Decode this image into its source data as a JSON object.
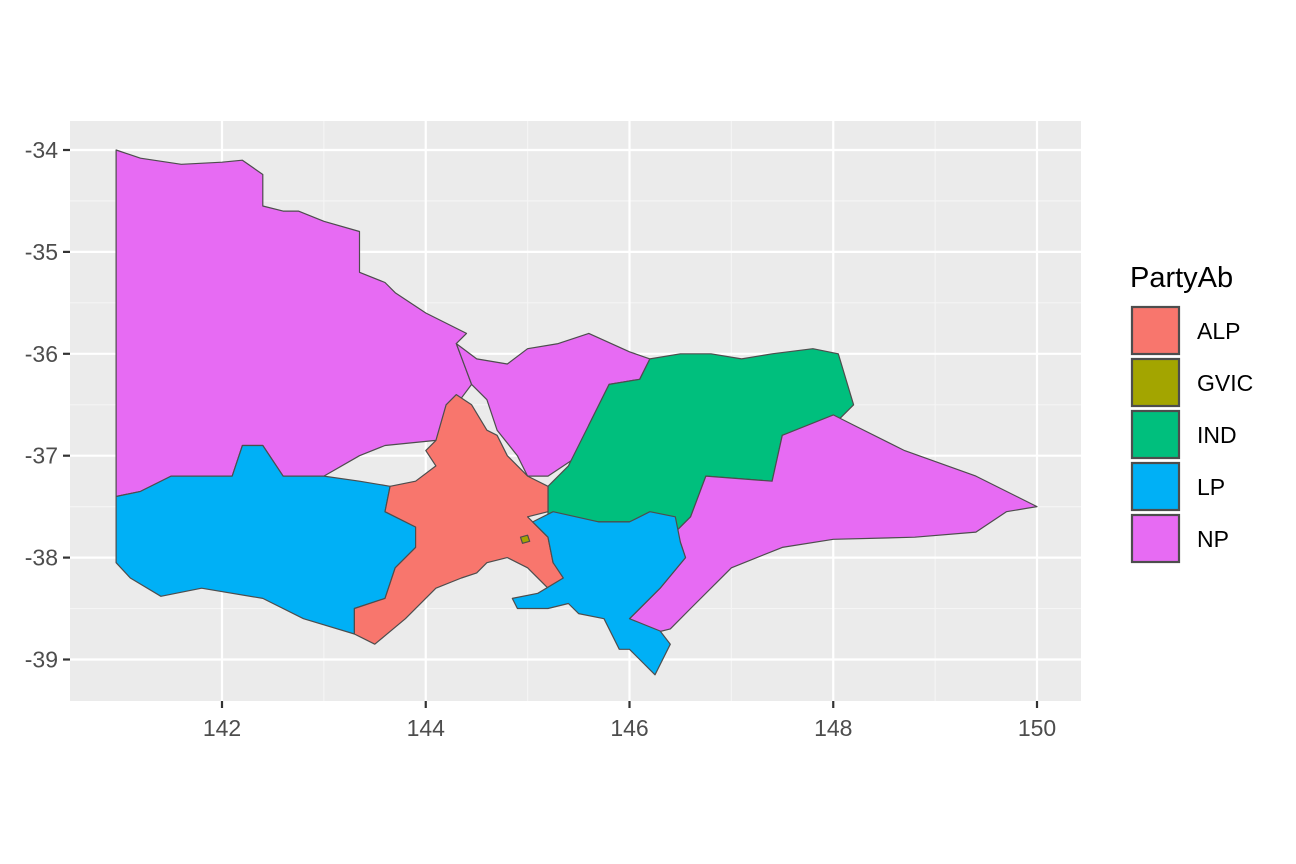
{
  "chart_data": {
    "type": "map",
    "title": "",
    "xlabel": "",
    "ylabel": "",
    "xlim": [
      140.7,
      150.3
    ],
    "ylim": [
      -39.4,
      -33.7
    ],
    "x_ticks": [
      142,
      144,
      146,
      148,
      150
    ],
    "y_ticks": [
      -34,
      -35,
      -36,
      -37,
      -38,
      -39
    ],
    "x_tick_labels": [
      "142",
      "144",
      "146",
      "148",
      "150"
    ],
    "y_tick_labels": [
      "-34",
      "-35",
      "-36",
      "-37",
      "-38",
      "-39"
    ],
    "grid": true,
    "legend": {
      "title": "PartyAb",
      "placement": "right",
      "entries": [
        {
          "label": "ALP",
          "color": "#F8766D"
        },
        {
          "label": "GVIC",
          "color": "#A3A500"
        },
        {
          "label": "IND",
          "color": "#00BF7D"
        },
        {
          "label": "LP",
          "color": "#00B0F6"
        },
        {
          "label": "NP",
          "color": "#E76BF3"
        }
      ]
    },
    "regions": [
      {
        "party": "NP",
        "points": [
          [
            140.96,
            -34.0
          ],
          [
            141.2,
            -34.08
          ],
          [
            141.6,
            -34.14
          ],
          [
            142.0,
            -34.12
          ],
          [
            142.2,
            -34.1
          ],
          [
            142.4,
            -34.24
          ],
          [
            142.4,
            -34.55
          ],
          [
            142.6,
            -34.6
          ],
          [
            142.75,
            -34.6
          ],
          [
            143.0,
            -34.7
          ],
          [
            143.35,
            -34.8
          ],
          [
            143.35,
            -35.2
          ],
          [
            143.6,
            -35.3
          ],
          [
            143.7,
            -35.4
          ],
          [
            144.0,
            -35.6
          ],
          [
            144.4,
            -35.8
          ],
          [
            144.3,
            -35.9
          ],
          [
            144.45,
            -36.3
          ],
          [
            144.3,
            -36.5
          ],
          [
            144.1,
            -36.85
          ],
          [
            143.6,
            -36.9
          ],
          [
            143.35,
            -37.0
          ],
          [
            143.0,
            -37.2
          ],
          [
            142.6,
            -37.2
          ],
          [
            142.4,
            -36.9
          ],
          [
            142.2,
            -36.9
          ],
          [
            142.1,
            -37.2
          ],
          [
            141.5,
            -37.2
          ],
          [
            141.2,
            -37.35
          ],
          [
            140.96,
            -37.4
          ]
        ]
      },
      {
        "party": "NP",
        "points": [
          [
            144.3,
            -35.9
          ],
          [
            144.5,
            -36.05
          ],
          [
            144.8,
            -36.1
          ],
          [
            145.0,
            -35.95
          ],
          [
            145.3,
            -35.9
          ],
          [
            145.6,
            -35.8
          ],
          [
            146.0,
            -35.98
          ],
          [
            146.2,
            -36.05
          ],
          [
            146.1,
            -36.25
          ],
          [
            145.8,
            -36.3
          ],
          [
            145.6,
            -36.7
          ],
          [
            145.5,
            -37.0
          ],
          [
            145.2,
            -37.2
          ],
          [
            145.0,
            -37.2
          ],
          [
            144.9,
            -37.0
          ],
          [
            144.7,
            -36.75
          ],
          [
            144.6,
            -36.45
          ],
          [
            144.45,
            -36.3
          ]
        ]
      },
      {
        "party": "IND",
        "points": [
          [
            146.2,
            -36.05
          ],
          [
            146.5,
            -36.0
          ],
          [
            146.8,
            -36.0
          ],
          [
            147.1,
            -36.05
          ],
          [
            147.4,
            -36.0
          ],
          [
            147.8,
            -35.95
          ],
          [
            148.05,
            -36.0
          ],
          [
            148.2,
            -36.5
          ],
          [
            148.0,
            -36.7
          ],
          [
            147.5,
            -36.8
          ],
          [
            147.4,
            -37.25
          ],
          [
            146.75,
            -37.2
          ],
          [
            146.6,
            -37.6
          ],
          [
            146.45,
            -37.75
          ],
          [
            146.0,
            -37.65
          ],
          [
            145.7,
            -37.65
          ],
          [
            145.2,
            -37.6
          ],
          [
            145.2,
            -37.3
          ],
          [
            145.4,
            -37.1
          ],
          [
            145.6,
            -36.7
          ],
          [
            145.8,
            -36.3
          ],
          [
            146.1,
            -36.25
          ]
        ]
      },
      {
        "party": "NP",
        "points": [
          [
            147.4,
            -37.25
          ],
          [
            147.5,
            -36.8
          ],
          [
            148.0,
            -36.6
          ],
          [
            148.2,
            -36.7
          ],
          [
            148.7,
            -36.95
          ],
          [
            149.4,
            -37.2
          ],
          [
            150.0,
            -37.5
          ],
          [
            149.7,
            -37.55
          ],
          [
            149.4,
            -37.75
          ],
          [
            148.8,
            -37.8
          ],
          [
            148.0,
            -37.82
          ],
          [
            147.5,
            -37.9
          ],
          [
            147.0,
            -38.1
          ],
          [
            146.6,
            -38.5
          ],
          [
            146.4,
            -38.7
          ],
          [
            146.2,
            -38.75
          ],
          [
            146.0,
            -38.6
          ],
          [
            146.3,
            -38.3
          ],
          [
            146.55,
            -38.0
          ],
          [
            146.5,
            -37.85
          ],
          [
            146.45,
            -37.75
          ],
          [
            146.6,
            -37.6
          ],
          [
            146.75,
            -37.2
          ]
        ]
      },
      {
        "party": "LP",
        "points": [
          [
            140.96,
            -37.4
          ],
          [
            141.2,
            -37.35
          ],
          [
            141.5,
            -37.2
          ],
          [
            142.1,
            -37.2
          ],
          [
            142.2,
            -36.9
          ],
          [
            142.4,
            -36.9
          ],
          [
            142.6,
            -37.2
          ],
          [
            143.0,
            -37.2
          ],
          [
            143.35,
            -37.25
          ],
          [
            143.65,
            -37.3
          ],
          [
            143.6,
            -37.55
          ],
          [
            143.9,
            -37.7
          ],
          [
            143.9,
            -37.9
          ],
          [
            143.7,
            -38.1
          ],
          [
            143.6,
            -38.4
          ],
          [
            143.3,
            -38.5
          ],
          [
            143.3,
            -38.75
          ],
          [
            142.8,
            -38.6
          ],
          [
            142.4,
            -38.4
          ],
          [
            141.8,
            -38.3
          ],
          [
            141.4,
            -38.38
          ],
          [
            141.1,
            -38.2
          ],
          [
            140.96,
            -38.05
          ]
        ]
      },
      {
        "party": "ALP",
        "points": [
          [
            143.65,
            -37.3
          ],
          [
            143.9,
            -37.25
          ],
          [
            144.1,
            -37.1
          ],
          [
            144.0,
            -36.95
          ],
          [
            144.1,
            -36.85
          ],
          [
            144.2,
            -36.5
          ],
          [
            144.3,
            -36.4
          ],
          [
            144.45,
            -36.5
          ],
          [
            144.6,
            -36.75
          ],
          [
            144.7,
            -36.8
          ],
          [
            144.8,
            -37.0
          ],
          [
            145.0,
            -37.2
          ],
          [
            145.2,
            -37.3
          ],
          [
            145.2,
            -37.55
          ],
          [
            145.0,
            -37.6
          ],
          [
            145.2,
            -37.8
          ],
          [
            145.25,
            -38.05
          ],
          [
            145.4,
            -38.2
          ],
          [
            145.2,
            -38.3
          ],
          [
            145.0,
            -38.1
          ],
          [
            144.8,
            -38.0
          ],
          [
            144.6,
            -38.05
          ],
          [
            144.5,
            -38.15
          ],
          [
            144.35,
            -38.2
          ],
          [
            144.1,
            -38.3
          ],
          [
            143.8,
            -38.6
          ],
          [
            143.5,
            -38.85
          ],
          [
            143.3,
            -38.75
          ],
          [
            143.3,
            -38.5
          ],
          [
            143.6,
            -38.4
          ],
          [
            143.7,
            -38.1
          ],
          [
            143.9,
            -37.9
          ],
          [
            143.9,
            -37.7
          ],
          [
            143.6,
            -37.55
          ]
        ]
      },
      {
        "party": "LP",
        "points": [
          [
            145.25,
            -37.55
          ],
          [
            145.7,
            -37.65
          ],
          [
            146.0,
            -37.65
          ],
          [
            146.2,
            -37.55
          ],
          [
            146.45,
            -37.6
          ],
          [
            146.5,
            -37.85
          ],
          [
            146.55,
            -38.0
          ],
          [
            146.3,
            -38.3
          ],
          [
            146.0,
            -38.6
          ],
          [
            146.3,
            -38.72
          ],
          [
            146.4,
            -38.85
          ],
          [
            146.3,
            -39.05
          ],
          [
            146.25,
            -39.15
          ],
          [
            146.1,
            -39.0
          ],
          [
            146.0,
            -38.9
          ],
          [
            145.9,
            -38.9
          ],
          [
            145.75,
            -38.6
          ],
          [
            145.5,
            -38.55
          ],
          [
            145.4,
            -38.45
          ],
          [
            145.2,
            -38.5
          ],
          [
            144.9,
            -38.5
          ],
          [
            144.85,
            -38.4
          ],
          [
            145.1,
            -38.35
          ],
          [
            145.35,
            -38.2
          ],
          [
            145.25,
            -38.05
          ],
          [
            145.2,
            -37.8
          ],
          [
            145.05,
            -37.65
          ]
        ]
      },
      {
        "party": "GVIC",
        "points": [
          [
            144.93,
            -37.8
          ],
          [
            145.0,
            -37.78
          ],
          [
            145.02,
            -37.84
          ],
          [
            144.95,
            -37.86
          ]
        ]
      }
    ]
  }
}
